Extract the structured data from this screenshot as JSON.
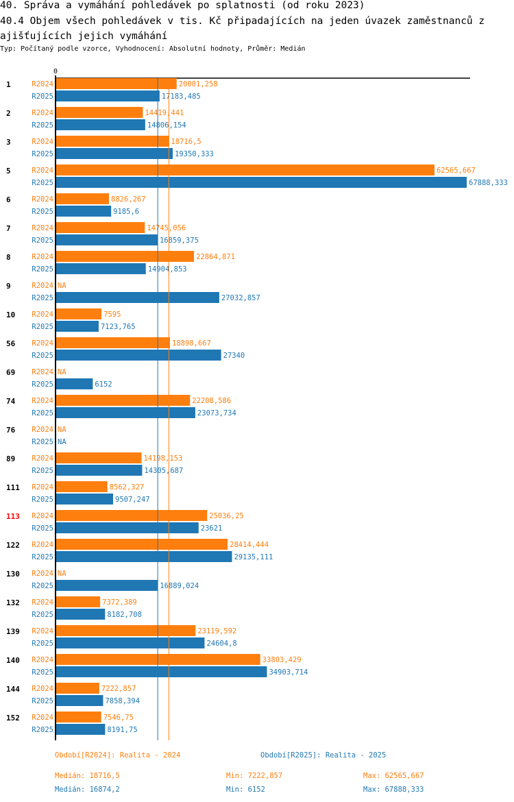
{
  "header": {
    "title": "40. Správa a vymáhání pohledávek po splatnosti (od roku 2023)",
    "subtitle_line": "40.4 Objem všech pohledávek v tis. Kč připadajících na jeden úvazek zaměstnanců z ajišťujících jejich vymáhání",
    "meta": "Typ: Počítaný podle vzorce, Vyhodnocení: Absolutní hodnoty, Průměr: Medián"
  },
  "colors": {
    "R2024": "#ff7f0e",
    "R2025": "#1f77b4",
    "axis": "#000000",
    "highlight_category": "#ff0000"
  },
  "chart_data": {
    "type": "bar",
    "orientation": "horizontal",
    "title": "40.4 Objem všech pohledávek v tis. Kč připadajících na jeden úvazek zaměstnanců z ajišťujících jejich vymáhání",
    "xlabel": "",
    "ylabel": "",
    "x_tick_labels": [
      "0"
    ],
    "xlim": [
      0,
      67888.333
    ],
    "grid": false,
    "highlighted_categories": [
      "113"
    ],
    "categories": [
      "1",
      "2",
      "3",
      "5",
      "6",
      "7",
      "8",
      "9",
      "10",
      "56",
      "69",
      "74",
      "76",
      "89",
      "111",
      "113",
      "122",
      "130",
      "132",
      "139",
      "140",
      "144",
      "152"
    ],
    "series": [
      {
        "name": "R2024",
        "values": [
          20001.258,
          14419.441,
          18716.5,
          62565.667,
          8826.267,
          14745.056,
          22864.871,
          null,
          7595,
          18898.667,
          null,
          22208.586,
          null,
          14198.153,
          8562.327,
          25036.25,
          28414.444,
          null,
          7372.389,
          23119.592,
          33803.429,
          7222.857,
          7546.75
        ],
        "labels": [
          "20001,258",
          "14419,441",
          "18716,5",
          "62565,667",
          "8826,267",
          "14745,056",
          "22864,871",
          "NA",
          "7595",
          "18898,667",
          "NA",
          "22208,586",
          "NA",
          "14198,153",
          "8562,327",
          "25036,25",
          "28414,444",
          "NA",
          "7372,389",
          "23119,592",
          "33803,429",
          "7222,857",
          "7546,75"
        ],
        "median": 18716.5
      },
      {
        "name": "R2025",
        "values": [
          17183.485,
          14806.154,
          19350.333,
          67888.333,
          9185.6,
          16859.375,
          14904.853,
          27032.857,
          7123.765,
          27340,
          6152,
          23073.734,
          null,
          14305.687,
          9507.247,
          23621,
          29135.111,
          16889.024,
          8182.708,
          24604.8,
          34903.714,
          7858.394,
          8191.75
        ],
        "labels": [
          "17183,485",
          "14806,154",
          "19350,333",
          "67888,333",
          "9185,6",
          "16859,375",
          "14904,853",
          "27032,857",
          "7123,765",
          "27340",
          "6152",
          "23073,734",
          "NA",
          "14305,687",
          "9507,247",
          "23621",
          "29135,111",
          "16889,024",
          "8182,708",
          "24604,8",
          "34903,714",
          "7858,394",
          "8191,75"
        ],
        "median": 16874.2
      }
    ],
    "reference_lines": [
      {
        "series": "R2024",
        "type": "median",
        "value": 18716.5
      },
      {
        "series": "R2025",
        "type": "median",
        "value": 16874.2
      }
    ]
  },
  "legend": {
    "R2024_label": "Období[R2024]: Realita - 2024",
    "R2025_label": "Období[R2025]: Realita - 2025",
    "R2024_median": "Medián: 18716,5",
    "R2024_min": "Min: 7222,857",
    "R2024_max": "Max: 62565,667",
    "R2025_median": "Medián: 16874,2",
    "R2025_min": "Min: 6152",
    "R2025_max": "Max: 67888,333"
  }
}
